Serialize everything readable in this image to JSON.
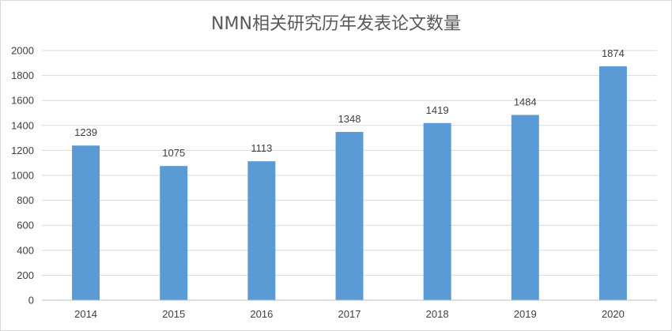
{
  "chart_data": {
    "type": "bar",
    "title": "NMN相关研究历年发表论文数量",
    "categories": [
      "2014",
      "2015",
      "2016",
      "2017",
      "2018",
      "2019",
      "2020"
    ],
    "values": [
      1239,
      1075,
      1113,
      1348,
      1419,
      1484,
      1874
    ],
    "data_labels": [
      "1239",
      "1075",
      "1113",
      "1348",
      "1419",
      "1484",
      "1874"
    ],
    "yticks": [
      "0",
      "200",
      "400",
      "600",
      "800",
      "1000",
      "1200",
      "1400",
      "1600",
      "1800",
      "2000"
    ],
    "ylim": [
      0,
      2000
    ],
    "xlabel": "",
    "ylabel": "",
    "grid": true,
    "legend": "none",
    "bar_color": "#5b9bd5",
    "grid_color": "#d9d9d9",
    "axis_color": "#bfbfbf",
    "text_color": "#404040",
    "title_color": "#595959"
  }
}
